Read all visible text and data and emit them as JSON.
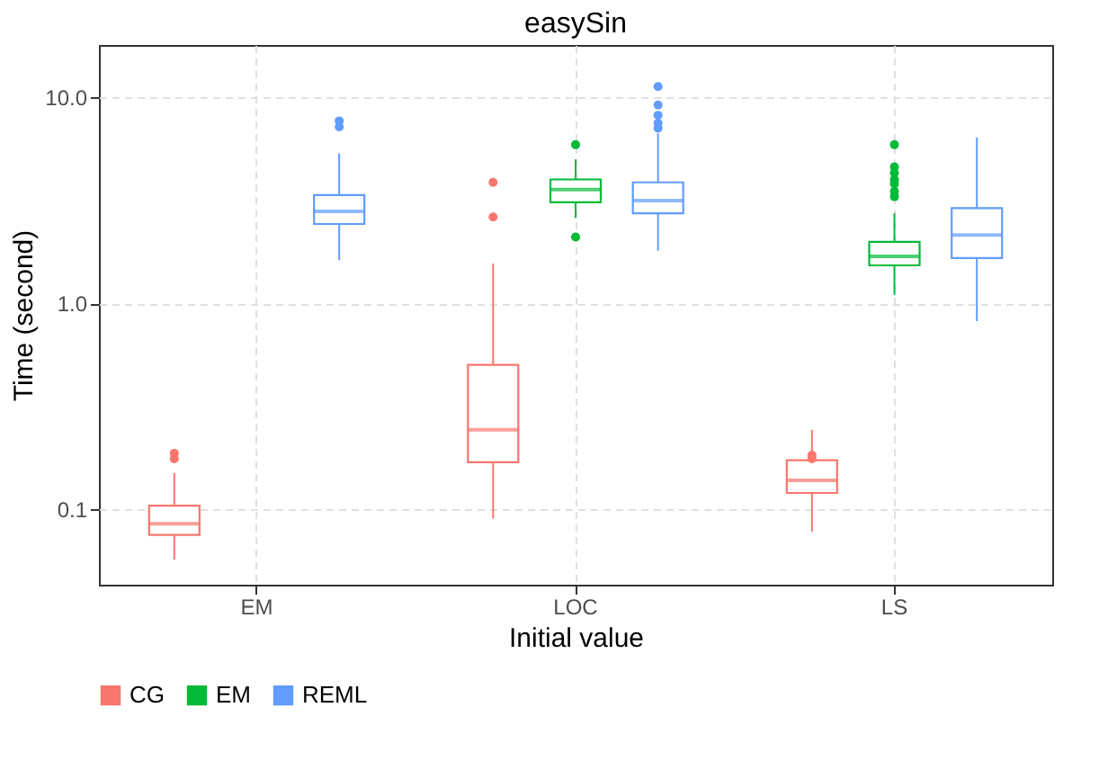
{
  "chart_data": {
    "type": "box",
    "title": "easySin",
    "xlabel": "Initial value",
    "ylabel": "Time (second)",
    "categories": [
      "EM",
      "LOC",
      "LS"
    ],
    "series": [
      {
        "name": "CG",
        "color": "#f8766d",
        "boxes": [
          {
            "low": 0.057,
            "q1": 0.075,
            "median": 0.085,
            "q3": 0.104,
            "high": 0.15,
            "outliers": [
              0.187,
              0.176
            ]
          },
          {
            "low": 0.09,
            "q1": 0.169,
            "median": 0.243,
            "q3": 0.503,
            "high": 1.56,
            "outliers": [
              3.87,
              2.63
            ]
          },
          {
            "low": 0.078,
            "q1": 0.12,
            "median": 0.138,
            "q3": 0.173,
            "high": 0.243,
            "outliers": [
              0.183,
              0.176
            ]
          }
        ]
      },
      {
        "name": "EM",
        "color": "#00ba38",
        "boxes": [
          null,
          {
            "low": 2.6,
            "q1": 3.1,
            "median": 3.57,
            "q3": 4.0,
            "high": 5.0,
            "outliers": [
              5.9,
              2.1
            ]
          },
          {
            "low": 1.1,
            "q1": 1.53,
            "median": 1.69,
            "q3": 1.99,
            "high": 2.74,
            "outliers": [
              3.3,
              3.5,
              3.8,
              4.0,
              4.3,
              4.6,
              5.9
            ]
          }
        ]
      },
      {
        "name": "REML",
        "color": "#619cff",
        "boxes": [
          {
            "low": 1.62,
            "q1": 2.43,
            "median": 2.8,
            "q3": 3.36,
            "high": 5.35,
            "outliers": [
              7.7,
              7.2
            ]
          },
          {
            "low": 1.8,
            "q1": 2.74,
            "median": 3.16,
            "q3": 3.87,
            "high": 6.7,
            "outliers": [
              8.2,
              7.5,
              7.1,
              9.2,
              11.3
            ]
          },
          {
            "low": 0.82,
            "q1": 1.66,
            "median": 2.15,
            "q3": 2.9,
            "high": 6.4
          }
        ]
      }
    ],
    "log": true,
    "ylim": [
      0.043,
      18
    ],
    "yticks": [
      {
        "value": 0.1,
        "label": "0.1"
      },
      {
        "value": 1,
        "label": "1.0"
      },
      {
        "value": 10,
        "label": "10.0"
      }
    ],
    "grid": true,
    "legend": "bottom"
  }
}
